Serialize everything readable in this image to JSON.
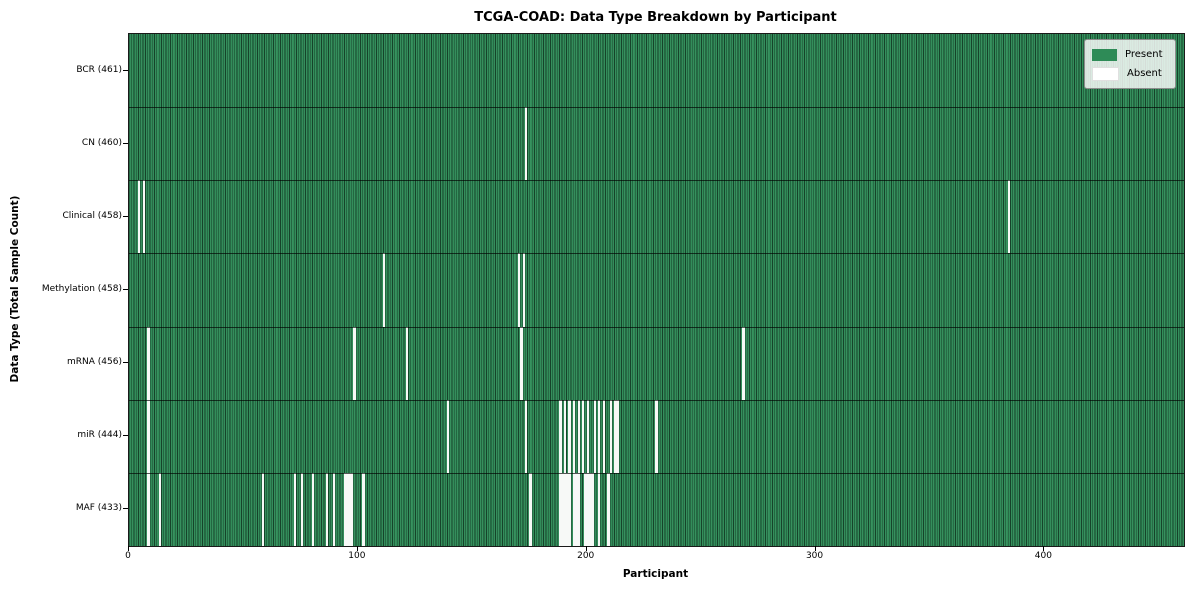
{
  "title": "TCGA-COAD: Data Type Breakdown by Participant",
  "axes": {
    "x_label": "Participant",
    "y_label": "Data Type (Total Sample Count)",
    "x_ticks": [
      0,
      100,
      200,
      300,
      400
    ],
    "x_max": 461
  },
  "legend": {
    "items": [
      {
        "name": "present",
        "label": "Present",
        "color": "#2e8b57"
      },
      {
        "name": "absent",
        "label": "Absent",
        "color": "#ffffff"
      }
    ]
  },
  "colors": {
    "present": "#2e8b57",
    "absent": "#ffffff",
    "cell_edge": "#1c4e33",
    "spine": "#1a1a1a"
  },
  "chart_data": {
    "type": "heatmap",
    "title": "TCGA-COAD: Data Type Breakdown by Participant",
    "xlabel": "Participant",
    "ylabel": "Data Type (Total Sample Count)",
    "legend_entries": [
      "Present",
      "Absent"
    ],
    "legend_position": "upper right",
    "x_range": [
      0,
      461
    ],
    "n_participants": 461,
    "x_tick_labels": [
      "0",
      "100",
      "200",
      "300",
      "400"
    ],
    "rows": [
      {
        "name": "BCR",
        "label": "BCR (461)",
        "total_samples": 461,
        "absent_participants": []
      },
      {
        "name": "CN",
        "label": "CN (460)",
        "total_samples": 460,
        "absent_participants": [
          173
        ]
      },
      {
        "name": "Clinical",
        "label": "Clinical (458)",
        "total_samples": 458,
        "absent_participants": [
          4,
          6,
          384
        ]
      },
      {
        "name": "Methylation",
        "label": "Methylation (458)",
        "total_samples": 458,
        "absent_participants": [
          111,
          170,
          172
        ]
      },
      {
        "name": "mRNA",
        "label": "mRNA (456)",
        "total_samples": 456,
        "absent_participants": [
          8,
          98,
          121,
          171,
          268
        ]
      },
      {
        "name": "miR",
        "label": "miR (444)",
        "total_samples": 444,
        "absent_participants": [
          8,
          139,
          173,
          188,
          190,
          192,
          194,
          196,
          198,
          200,
          203,
          205,
          207,
          210,
          212,
          213,
          230
        ]
      },
      {
        "name": "MAF",
        "label": "MAF (433)",
        "total_samples": 433,
        "absent_participants": [
          8,
          13,
          58,
          72,
          75,
          80,
          86,
          89,
          94,
          95,
          96,
          97,
          102,
          175,
          188,
          189,
          190,
          191,
          192,
          194,
          195,
          196,
          199,
          200,
          201,
          202,
          205,
          209
        ]
      }
    ]
  }
}
